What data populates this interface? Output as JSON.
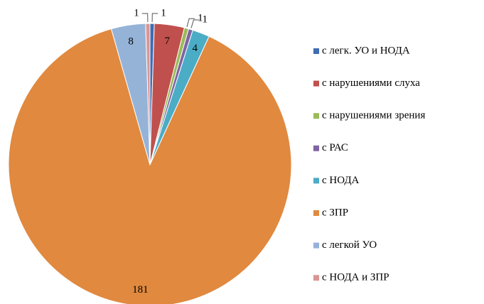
{
  "chart_data": {
    "type": "pie",
    "categories": [
      "с легк. УО и НОДА",
      "с нарушениями слуха",
      "с нарушениями зрения",
      "с РАС",
      "с НОДА",
      "с ЗПР",
      "с легкой УО",
      "с НОДА и ЗПР"
    ],
    "values": [
      1,
      7,
      1,
      1,
      4,
      181,
      8,
      1
    ],
    "colors": [
      "#3f6cb4",
      "#c0504d",
      "#9bbb59",
      "#8064a2",
      "#4bacc6",
      "#e0893f",
      "#95b3d7",
      "#d99694"
    ],
    "legend": "right"
  }
}
